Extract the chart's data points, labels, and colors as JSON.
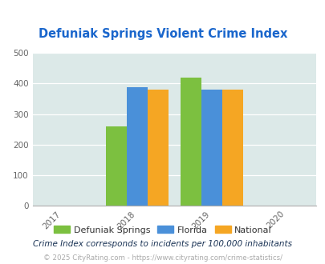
{
  "title": "Defuniak Springs Violent Crime Index",
  "title_color": "#1a66cc",
  "bar_groups": {
    "2018": {
      "Defuniak Springs": 260,
      "Florida": 387,
      "National": 381
    },
    "2019": {
      "Defuniak Springs": 418,
      "Florida": 380,
      "National": 381
    }
  },
  "colors": {
    "Defuniak Springs": "#7cc040",
    "Florida": "#4a90d9",
    "National": "#f5a623"
  },
  "ylim": [
    0,
    500
  ],
  "yticks": [
    0,
    100,
    200,
    300,
    400,
    500
  ],
  "plot_bg_color": "#dce9e8",
  "legend_labels": [
    "Defuniak Springs",
    "Florida",
    "National"
  ],
  "footnote1": "Crime Index corresponds to incidents per 100,000 inhabitants",
  "footnote2": "© 2025 CityRating.com - https://www.cityrating.com/crime-statistics/",
  "bar_width": 0.28,
  "group_positions": [
    2018,
    2019
  ],
  "x_ticks": [
    2017,
    2018,
    2019,
    2020
  ],
  "xlim": [
    2016.6,
    2020.4
  ]
}
